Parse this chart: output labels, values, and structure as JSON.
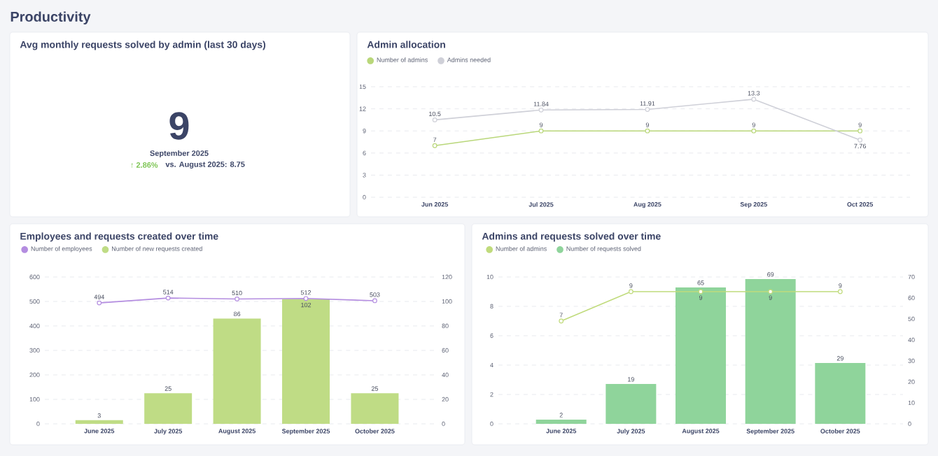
{
  "chart_data": [
    {
      "type": "other",
      "title": "Avg monthly requests solved by admin (last 30 days)",
      "annotations": [
        "Productivity",
        "9",
        "September 2025",
        "↑ 2.86%",
        "vs. August 2025: 8.75"
      ]
    },
    {
      "type": "line",
      "title": "Admin allocation",
      "categories": [
        "Jun 2025",
        "Jul 2025",
        "Aug 2025",
        "Sep 2025",
        "Oct 2025"
      ],
      "series": [
        {
          "name": "Number of admins",
          "color": "#b9d77a",
          "values": [
            7,
            9,
            9,
            9,
            9
          ]
        },
        {
          "name": "Admins needed",
          "color": "#cfd0d8",
          "values": [
            10.5,
            11.84,
            11.91,
            13.3,
            7.76
          ]
        }
      ],
      "ylim": [
        0,
        15
      ],
      "yticks": [
        0,
        3,
        6,
        9,
        12,
        15
      ],
      "grid": "y",
      "legend": "top left",
      "marker": "circle",
      "data_labels": true
    },
    {
      "type": "bar",
      "title": "Employees and requests created over time",
      "categories": [
        "June 2025",
        "July 2025",
        "August 2025",
        "September 2025",
        "October 2025"
      ],
      "series": [
        {
          "name": "Number of employees",
          "type": "line",
          "color": "#b48de0",
          "values": [
            494,
            514,
            510,
            512,
            503
          ]
        },
        {
          "name": "Number of new requests created",
          "color": "#bfdc85",
          "axis": "y2",
          "values": [
            3,
            25,
            86,
            102,
            25
          ]
        }
      ],
      "ylim": [
        0,
        600
      ],
      "yticks": [
        0,
        100,
        200,
        300,
        400,
        500,
        600
      ],
      "y2lim": [
        0,
        120
      ],
      "y2ticks": [
        0,
        20,
        40,
        60,
        80,
        100,
        120
      ],
      "grid": "y",
      "legend": "top left",
      "marker": "circle",
      "data_labels": true
    },
    {
      "type": "bar",
      "title": "Admins and requests solved over time",
      "categories": [
        "June 2025",
        "July 2025",
        "August 2025",
        "September 2025",
        "October 2025"
      ],
      "series": [
        {
          "name": "Number of admins",
          "type": "line",
          "color": "#c0db7c",
          "values": [
            7,
            9,
            9,
            9,
            9
          ]
        },
        {
          "name": "Number of requests solved",
          "color": "#8fd49b",
          "axis": "y2",
          "values": [
            2,
            19,
            65,
            69,
            29
          ]
        }
      ],
      "ylim": [
        0,
        10
      ],
      "yticks": [
        0,
        2,
        4,
        6,
        8,
        10
      ],
      "y2lim": [
        0,
        70
      ],
      "y2ticks": [
        0,
        10,
        20,
        30,
        40,
        50,
        60,
        70
      ],
      "grid": "y",
      "legend": "top left",
      "marker": "circle",
      "data_labels": true
    }
  ]
}
